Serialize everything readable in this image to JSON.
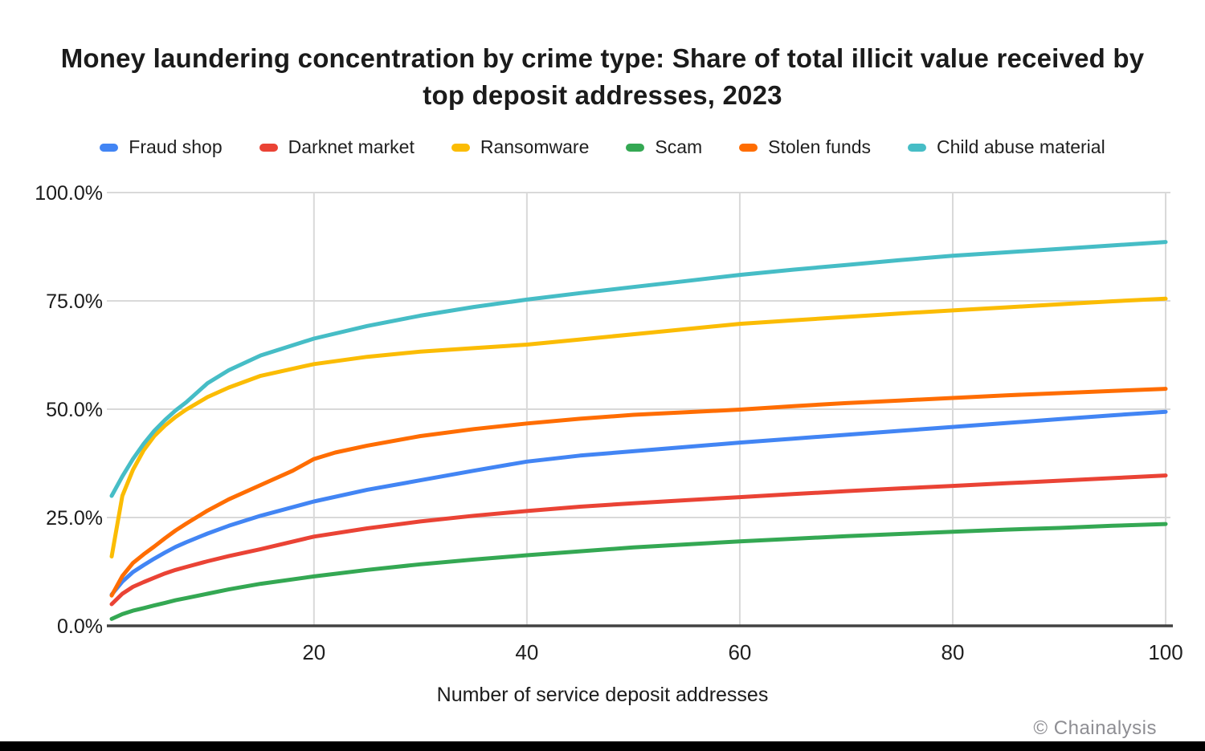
{
  "header": {
    "title_line1": "Money laundering concentration by crime type: Share of total illicit value received by",
    "title_line2": "top deposit addresses, 2023"
  },
  "legend": {
    "items": [
      {
        "label": "Fraud shop",
        "color": "#4285F4"
      },
      {
        "label": "Darknet market",
        "color": "#EA4335"
      },
      {
        "label": "Ransomware",
        "color": "#FBBC04"
      },
      {
        "label": "Scam",
        "color": "#34A853"
      },
      {
        "label": "Stolen funds",
        "color": "#FF6D01"
      },
      {
        "label": "Child abuse material",
        "color": "#46BDC6"
      }
    ]
  },
  "chart_data": {
    "type": "line",
    "title": "Money laundering concentration by crime type: Share of total illicit value received by top deposit addresses, 2023",
    "xlabel": "Number of service deposit addresses",
    "ylabel": "",
    "x_range": [
      1,
      100
    ],
    "ylim_percent": [
      0,
      100
    ],
    "grid": true,
    "legend_position": "top",
    "x_ticks": [
      20,
      40,
      60,
      80,
      100
    ],
    "y_ticks": [
      {
        "value": 0,
        "label": "0.0%"
      },
      {
        "value": 25,
        "label": "25.0%"
      },
      {
        "value": 50,
        "label": "50.0%"
      },
      {
        "value": 75,
        "label": "75.0%"
      },
      {
        "value": 100,
        "label": "100.0%"
      }
    ],
    "grid_color": "#d9d9d9",
    "baseline_color": "#424242",
    "series": [
      {
        "name": "Fraud shop",
        "color": "#4285F4",
        "points": [
          [
            1,
            7.2
          ],
          [
            2,
            10.2
          ],
          [
            3,
            12.4
          ],
          [
            4,
            14
          ],
          [
            5,
            15.5
          ],
          [
            6,
            16.9
          ],
          [
            7,
            18.2
          ],
          [
            8,
            19.3
          ],
          [
            10,
            21.3
          ],
          [
            12,
            23.1
          ],
          [
            15,
            25.4
          ],
          [
            20,
            28.7
          ],
          [
            25,
            31.4
          ],
          [
            30,
            33.6
          ],
          [
            35,
            35.8
          ],
          [
            40,
            37.9
          ],
          [
            45,
            39.3
          ],
          [
            50,
            40.3
          ],
          [
            55,
            41.3
          ],
          [
            60,
            42.3
          ],
          [
            65,
            43.2
          ],
          [
            70,
            44.1
          ],
          [
            75,
            45
          ],
          [
            80,
            45.9
          ],
          [
            85,
            46.8
          ],
          [
            90,
            47.7
          ],
          [
            95,
            48.6
          ],
          [
            100,
            49.4
          ]
        ]
      },
      {
        "name": "Darknet market",
        "color": "#EA4335",
        "points": [
          [
            1,
            5
          ],
          [
            2,
            7.4
          ],
          [
            3,
            9
          ],
          [
            4,
            10.1
          ],
          [
            5,
            11.1
          ],
          [
            6,
            12.1
          ],
          [
            7,
            12.9
          ],
          [
            8,
            13.6
          ],
          [
            10,
            14.9
          ],
          [
            12,
            16.1
          ],
          [
            15,
            17.7
          ],
          [
            20,
            20.6
          ],
          [
            25,
            22.5
          ],
          [
            30,
            24.1
          ],
          [
            35,
            25.4
          ],
          [
            40,
            26.5
          ],
          [
            45,
            27.5
          ],
          [
            50,
            28.3
          ],
          [
            55,
            29
          ],
          [
            60,
            29.7
          ],
          [
            65,
            30.4
          ],
          [
            70,
            31.1
          ],
          [
            75,
            31.7
          ],
          [
            80,
            32.3
          ],
          [
            85,
            32.9
          ],
          [
            90,
            33.5
          ],
          [
            95,
            34.1
          ],
          [
            100,
            34.7
          ]
        ]
      },
      {
        "name": "Ransomware",
        "color": "#FBBC04",
        "points": [
          [
            1,
            16
          ],
          [
            2,
            30
          ],
          [
            3,
            36
          ],
          [
            4,
            40.5
          ],
          [
            5,
            43.8
          ],
          [
            6,
            46.2
          ],
          [
            7,
            48.2
          ],
          [
            8,
            49.9
          ],
          [
            10,
            52.8
          ],
          [
            12,
            55
          ],
          [
            15,
            57.7
          ],
          [
            20,
            60.4
          ],
          [
            25,
            62.1
          ],
          [
            30,
            63.3
          ],
          [
            35,
            64.1
          ],
          [
            40,
            64.9
          ],
          [
            45,
            66.1
          ],
          [
            50,
            67.3
          ],
          [
            55,
            68.5
          ],
          [
            60,
            69.7
          ],
          [
            65,
            70.5
          ],
          [
            70,
            71.3
          ],
          [
            75,
            72.1
          ],
          [
            80,
            72.8
          ],
          [
            85,
            73.5
          ],
          [
            90,
            74.2
          ],
          [
            95,
            74.9
          ],
          [
            100,
            75.5
          ]
        ]
      },
      {
        "name": "Scam",
        "color": "#34A853",
        "points": [
          [
            1,
            1.6
          ],
          [
            2,
            2.7
          ],
          [
            3,
            3.5
          ],
          [
            4,
            4.1
          ],
          [
            5,
            4.7
          ],
          [
            6,
            5.3
          ],
          [
            7,
            5.9
          ],
          [
            8,
            6.4
          ],
          [
            10,
            7.4
          ],
          [
            12,
            8.4
          ],
          [
            15,
            9.7
          ],
          [
            20,
            11.4
          ],
          [
            25,
            12.9
          ],
          [
            30,
            14.2
          ],
          [
            35,
            15.3
          ],
          [
            40,
            16.3
          ],
          [
            45,
            17.2
          ],
          [
            50,
            18.1
          ],
          [
            55,
            18.8
          ],
          [
            60,
            19.5
          ],
          [
            65,
            20.1
          ],
          [
            70,
            20.7
          ],
          [
            75,
            21.2
          ],
          [
            80,
            21.7
          ],
          [
            85,
            22.2
          ],
          [
            90,
            22.6
          ],
          [
            95,
            23.1
          ],
          [
            100,
            23.5
          ]
        ]
      },
      {
        "name": "Stolen funds",
        "color": "#FF6D01",
        "points": [
          [
            1,
            7
          ],
          [
            2,
            11.5
          ],
          [
            3,
            14.5
          ],
          [
            4,
            16.5
          ],
          [
            5,
            18.3
          ],
          [
            6,
            20.2
          ],
          [
            7,
            22
          ],
          [
            8,
            23.6
          ],
          [
            10,
            26.6
          ],
          [
            12,
            29.2
          ],
          [
            15,
            32.5
          ],
          [
            18,
            35.8
          ],
          [
            20,
            38.5
          ],
          [
            22,
            40
          ],
          [
            25,
            41.6
          ],
          [
            30,
            43.8
          ],
          [
            35,
            45.4
          ],
          [
            40,
            46.7
          ],
          [
            45,
            47.8
          ],
          [
            50,
            48.7
          ],
          [
            55,
            49.3
          ],
          [
            60,
            49.9
          ],
          [
            65,
            50.7
          ],
          [
            70,
            51.4
          ],
          [
            75,
            52
          ],
          [
            80,
            52.6
          ],
          [
            85,
            53.2
          ],
          [
            90,
            53.7
          ],
          [
            95,
            54.2
          ],
          [
            100,
            54.7
          ]
        ]
      },
      {
        "name": "Child abuse material",
        "color": "#46BDC6",
        "points": [
          [
            1,
            30
          ],
          [
            2,
            34.5
          ],
          [
            3,
            38.5
          ],
          [
            4,
            42
          ],
          [
            5,
            45
          ],
          [
            6,
            47.5
          ],
          [
            7,
            49.7
          ],
          [
            8,
            51.6
          ],
          [
            10,
            56
          ],
          [
            12,
            59
          ],
          [
            15,
            62.4
          ],
          [
            20,
            66.3
          ],
          [
            25,
            69.2
          ],
          [
            30,
            71.6
          ],
          [
            35,
            73.6
          ],
          [
            40,
            75.3
          ],
          [
            45,
            76.8
          ],
          [
            50,
            78.2
          ],
          [
            55,
            79.6
          ],
          [
            60,
            81
          ],
          [
            65,
            82.2
          ],
          [
            70,
            83.3
          ],
          [
            75,
            84.4
          ],
          [
            80,
            85.4
          ],
          [
            85,
            86.2
          ],
          [
            90,
            87
          ],
          [
            95,
            87.8
          ],
          [
            100,
            88.6
          ]
        ]
      }
    ]
  },
  "x_axis": {
    "title": "Number of service deposit addresses"
  },
  "footer": {
    "copyright": "© Chainalysis"
  }
}
